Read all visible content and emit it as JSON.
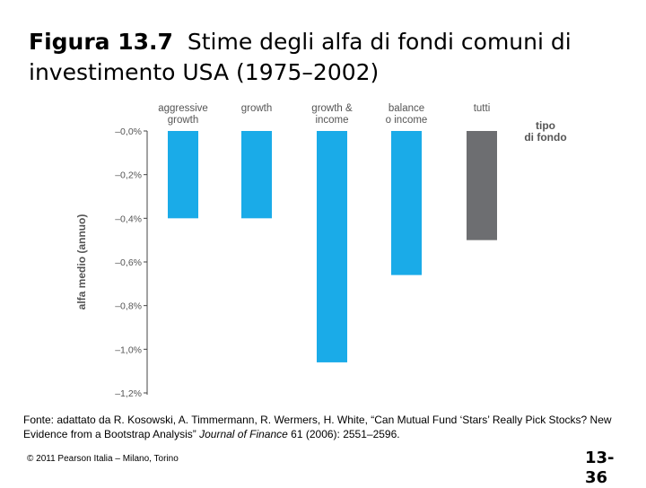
{
  "slide": {
    "title_fig": "Figura 13.7",
    "title_text": "Stime degli alfa di fondi comuni di investimento USA (1975–2002)",
    "source_prefix": "Fonte: adattato da R. Kosowski, A. Timmermann, R. Wermers, H. White, “Can Mutual Fund ‘Stars’ Really Pick Stocks? New Evidence from a Bootstrap Analysis” ",
    "source_journal": "Journal of Finance",
    "source_suffix": " 61 (2006): 2551–2596.",
    "copyright": "© 2011 Pearson Italia – Milano, Torino",
    "page_number": "13-36"
  },
  "chart_data": {
    "type": "bar",
    "categories": [
      [
        "aggressive",
        "growth"
      ],
      [
        "growth"
      ],
      [
        "growth &",
        "income"
      ],
      [
        "balance",
        "o income"
      ],
      [
        "tutti"
      ]
    ],
    "values": [
      -0.4,
      -0.4,
      -1.06,
      -0.66,
      -0.5
    ],
    "colors": [
      "#1aabe8",
      "#1aabe8",
      "#1aabe8",
      "#1aabe8",
      "#6d6e71"
    ],
    "xlabel": [
      "tipo",
      "di fondo"
    ],
    "ylabel": "alfa medio (annuo)",
    "ylim": [
      -1.2,
      0.0
    ],
    "yticks": [
      "–0,0%",
      "–0,2%",
      "–0,4%",
      "–0,6%",
      "–0,8%",
      "–1,0%",
      "–1,2%"
    ],
    "ytick_values": [
      0.0,
      -0.2,
      -0.4,
      -0.6,
      -0.8,
      -1.0,
      -1.2
    ],
    "axis_color": "#444444",
    "label_color": "#555555"
  }
}
